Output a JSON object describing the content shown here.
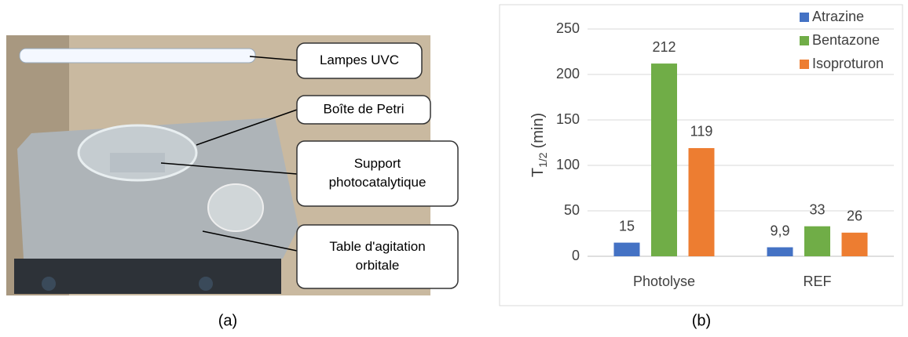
{
  "photo_panel": {
    "caption": "(a)",
    "callouts": [
      {
        "lines": [
          "Lampes  UVC"
        ]
      },
      {
        "lines": [
          "Boîte de Petri"
        ]
      },
      {
        "lines": [
          "Support",
          "photocatalytique"
        ]
      },
      {
        "lines": [
          "Table d'agitation",
          "orbitale"
        ]
      }
    ]
  },
  "chart_data": {
    "type": "bar",
    "caption": "(b)",
    "y_label": {
      "main": "T",
      "sub": "1/2",
      "unit": "(min)"
    },
    "categories": [
      "Photolyse",
      "REF"
    ],
    "series": [
      {
        "name": "Atrazine",
        "color": "#4472c4",
        "values": [
          15,
          9.9
        ],
        "value_labels": [
          "15",
          "9,9"
        ]
      },
      {
        "name": "Bentazone",
        "color": "#70ad47",
        "values": [
          212,
          33
        ]
      },
      {
        "name": "Isoproturon",
        "color": "#ed7d31",
        "values": [
          119,
          26
        ]
      }
    ],
    "ylim": [
      0,
      250
    ],
    "yticks": [
      0,
      50,
      100,
      150,
      200,
      250
    ],
    "grid": true,
    "legend": "top-right"
  }
}
